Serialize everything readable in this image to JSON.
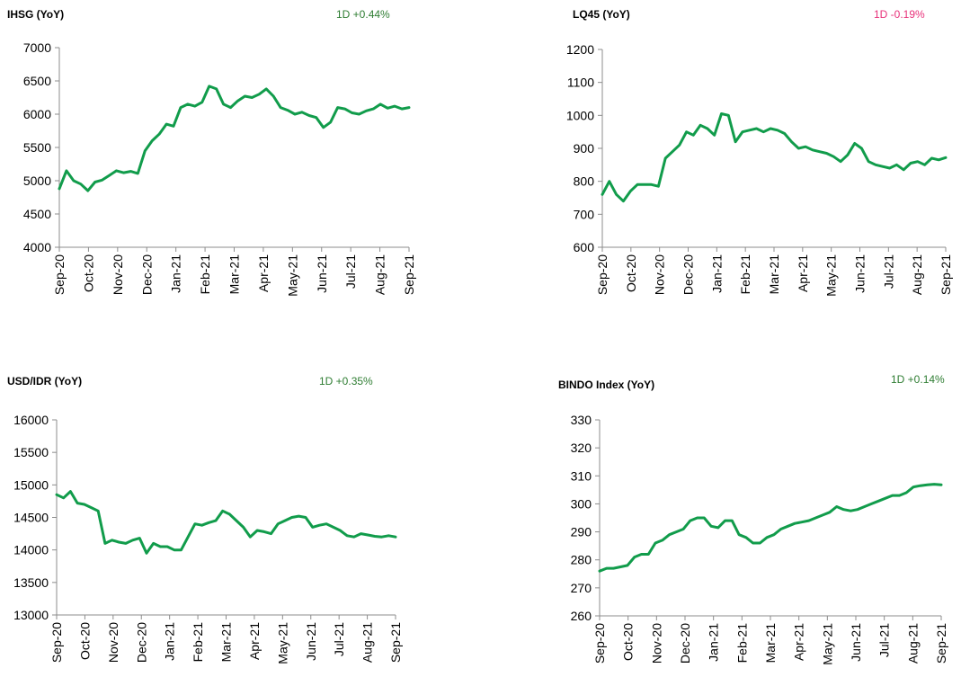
{
  "charts": [
    {
      "id": "ihsg",
      "title": "IHSG (YoY)",
      "change": "1D +0.44%",
      "change_color": "#2e7d32",
      "line_color": "#119c4b",
      "chart_data": {
        "type": "line",
        "title": "IHSG (YoY)",
        "ylim": [
          4000,
          7000
        ],
        "yticks": [
          4000,
          4500,
          5000,
          5500,
          6000,
          6500,
          7000
        ],
        "xticks": [
          "Sep-20",
          "Oct-20",
          "Nov-20",
          "Dec-20",
          "Jan-21",
          "Feb-21",
          "Mar-21",
          "Apr-21",
          "May-21",
          "Jun-21",
          "Jul-21",
          "Aug-21",
          "Sep-21"
        ],
        "grid": false,
        "series": [
          {
            "values": [
              4880,
              5150,
              5000,
              4950,
              4850,
              4980,
              5010,
              5080,
              5150,
              5120,
              5140,
              5110,
              5450,
              5600,
              5700,
              5850,
              5820,
              6100,
              6150,
              6120,
              6180,
              6420,
              6380,
              6150,
              6100,
              6200,
              6270,
              6250,
              6300,
              6380,
              6270,
              6100,
              6060,
              6000,
              6030,
              5980,
              5950,
              5800,
              5880,
              6100,
              6080,
              6020,
              6000,
              6050,
              6080,
              6150,
              6090,
              6120,
              6080,
              6100
            ]
          }
        ]
      }
    },
    {
      "id": "lq45",
      "title": "LQ45 (YoY)",
      "change": "1D -0.19%",
      "change_color": "#e8317a",
      "line_color": "#119c4b",
      "chart_data": {
        "type": "line",
        "title": "LQ45 (YoY)",
        "ylim": [
          600,
          1200
        ],
        "yticks": [
          600,
          700,
          800,
          900,
          1000,
          1100,
          1200
        ],
        "xticks": [
          "Sep-20",
          "Oct-20",
          "Nov-20",
          "Dec-20",
          "Jan-21",
          "Feb-21",
          "Mar-21",
          "Apr-21",
          "May-21",
          "Jun-21",
          "Jul-21",
          "Aug-21",
          "Sep-21"
        ],
        "grid": false,
        "series": [
          {
            "values": [
              760,
              800,
              760,
              740,
              770,
              790,
              790,
              790,
              785,
              870,
              890,
              910,
              950,
              940,
              970,
              960,
              940,
              1005,
              1000,
              920,
              950,
              955,
              960,
              950,
              960,
              955,
              945,
              920,
              900,
              905,
              895,
              890,
              885,
              875,
              860,
              880,
              915,
              900,
              860,
              850,
              845,
              840,
              850,
              835,
              855,
              860,
              850,
              870,
              865,
              872
            ]
          }
        ]
      }
    },
    {
      "id": "usdidr",
      "title": "USD/IDR  (YoY)",
      "change": "1D +0.35%",
      "change_color": "#2e7d32",
      "line_color": "#119c4b",
      "chart_data": {
        "type": "line",
        "title": "USD/IDR  (YoY)",
        "ylim": [
          13000,
          16000
        ],
        "yticks": [
          13000,
          13500,
          14000,
          14500,
          15000,
          15500,
          16000
        ],
        "xticks": [
          "Sep-20",
          "Oct-20",
          "Nov-20",
          "Dec-20",
          "Jan-21",
          "Feb-21",
          "Mar-21",
          "Apr-21",
          "May-21",
          "Jun-21",
          "Jul-21",
          "Aug-21",
          "Sep-21"
        ],
        "grid": false,
        "series": [
          {
            "values": [
              14850,
              14800,
              14900,
              14720,
              14700,
              14650,
              14600,
              14100,
              14150,
              14120,
              14100,
              14150,
              14180,
              13950,
              14100,
              14050,
              14050,
              14000,
              14000,
              14200,
              14400,
              14380,
              14420,
              14450,
              14600,
              14550,
              14450,
              14350,
              14200,
              14300,
              14280,
              14250,
              14400,
              14450,
              14500,
              14520,
              14500,
              14350,
              14380,
              14400,
              14350,
              14300,
              14220,
              14200,
              14250,
              14230,
              14210,
              14200,
              14220,
              14200
            ]
          }
        ]
      }
    },
    {
      "id": "bindo",
      "title": "BINDO Index (YoY)",
      "change": "1D +0.14%",
      "change_color": "#2e7d32",
      "line_color": "#119c4b",
      "chart_data": {
        "type": "line",
        "title": "BINDO Index (YoY)",
        "ylim": [
          260,
          330
        ],
        "yticks": [
          260,
          270,
          280,
          290,
          300,
          310,
          320,
          330
        ],
        "xticks": [
          "Sep-20",
          "Oct-20",
          "Nov-20",
          "Dec-20",
          "Jan-21",
          "Feb-21",
          "Mar-21",
          "Apr-21",
          "May-21",
          "Jun-21",
          "Jul-21",
          "Aug-21",
          "Sep-21"
        ],
        "grid": false,
        "series": [
          {
            "values": [
              276,
              277,
              277,
              277.5,
              278,
              281,
              282,
              282,
              286,
              287,
              289,
              290,
              291,
              294,
              295,
              295,
              292,
              291.5,
              294,
              294,
              289,
              288,
              286,
              286,
              288,
              289,
              291,
              292,
              293,
              293.5,
              294,
              295,
              296,
              297,
              299,
              298,
              297.5,
              298,
              299,
              300,
              301,
              302,
              303,
              303,
              304,
              306,
              306.5,
              306.8,
              307,
              306.8
            ]
          }
        ]
      }
    }
  ]
}
